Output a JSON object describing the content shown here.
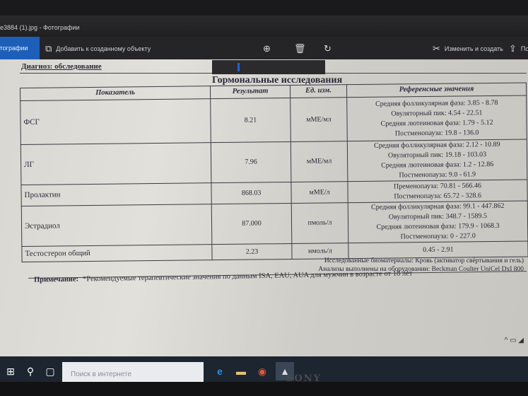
{
  "window": {
    "title": "e3884 (1).jpg - Фотографии"
  },
  "toolbar": {
    "back_label": "Фотографии",
    "add_label": "Добавить к созданному объекту",
    "edit_label": "Изменить и создать",
    "share_label": "По",
    "icons": [
      "zoom-in-icon",
      "delete-icon",
      "rotate-icon"
    ]
  },
  "document": {
    "diagnosis": "Диагноз: обследование",
    "section_title": "Гормональные исследования",
    "headers": [
      "Показатель",
      "Результат",
      "Ед. изм.",
      "Референсные значения"
    ],
    "rows": [
      {
        "name": "ФСГ",
        "result": "8.21",
        "unit": "мМЕ/мл",
        "ref": [
          "Средняя фолликулярная фаза: 3.85 - 8.78",
          "Овуляторный пик: 4.54 - 22.51",
          "Средняя лютеиновая фаза: 1.79 - 5.12",
          "Постменопауза: 19.8 - 136.0"
        ]
      },
      {
        "name": "ЛГ",
        "result": "7.96",
        "unit": "мМЕ/мл",
        "ref": [
          "Средняя фолликулярная фаза: 2.12 - 10.89",
          "Овуляторный пик: 19.18 - 103.03",
          "Средняя лютеиновая фаза: 1.2 - 12.86",
          "Постменопауза: 9.0 - 61.9"
        ]
      },
      {
        "name": "Пролактин",
        "result": "868.03",
        "unit": "мМЕ/л",
        "ref": [
          "Пременопауза: 70.81 - 566.46",
          "Постменопауза: 65.72 - 328.6"
        ]
      },
      {
        "name": "Эстрадиол",
        "result": "87.000",
        "unit": "пмоль/л",
        "ref": [
          "Средняя фолликулярная фаза: 99.1 - 447.862",
          "Овуляторный пик: 348.7 - 1589.5",
          "Средняя лютеиновая фаза: 179.9 - 1068.3",
          "Постменопауза: 0 - 227.0"
        ]
      },
      {
        "name": "Тестостерон общий",
        "result": "2.23",
        "unit": "нмоль/л",
        "ref": [
          "0.45 - 2.91"
        ]
      }
    ],
    "biomaterial": "Исследованные биоматериалы: Кровь (активатор свёртывания и гель)",
    "equipment": "Анализы выполнены на оборудовании: Beckman Coulter UniCel DxI 800",
    "note_label": "Примечание:",
    "note_text": "*Рекомендуемые терапевтические значения по данным ISA, EAU, AUA для мужчин в возрасте от 18 лет"
  },
  "taskbar": {
    "search_placeholder": "Поиск в интернете",
    "apps": [
      "edge-icon",
      "file-explorer-icon",
      "chrome-icon",
      "photos-icon"
    ]
  },
  "brand": "SONY"
}
